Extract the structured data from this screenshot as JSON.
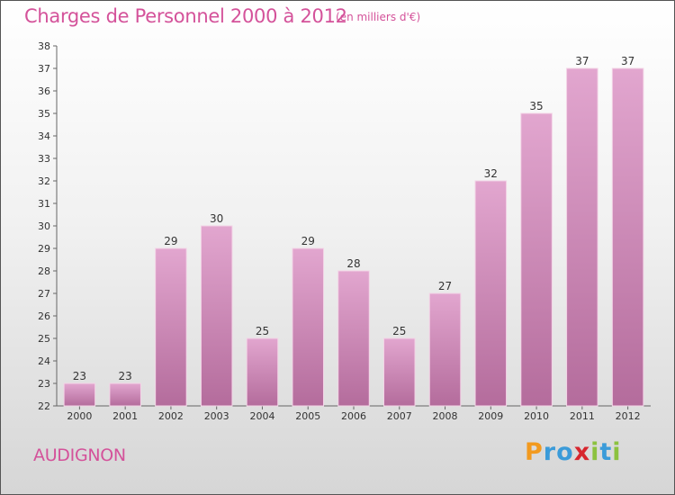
{
  "chart_data": {
    "type": "bar",
    "title": "Charges de Personnel 2000 à 2012",
    "subtitle": "(en milliers d'€)",
    "categories": [
      "2000",
      "2001",
      "2002",
      "2003",
      "2004",
      "2005",
      "2006",
      "2007",
      "2008",
      "2009",
      "2010",
      "2011",
      "2012"
    ],
    "values": [
      23,
      23,
      29,
      30,
      25,
      29,
      28,
      25,
      27,
      32,
      35,
      37,
      37
    ],
    "ylim": [
      22,
      38
    ],
    "yticks": [
      22,
      23,
      24,
      25,
      26,
      27,
      28,
      29,
      30,
      31,
      32,
      33,
      34,
      35,
      36,
      37,
      38
    ],
    "xlabel": "",
    "ylabel": "",
    "grid": false,
    "bar_color": "#d98bbd",
    "accent_color": "#d4529a"
  },
  "place": "AUDIGNON",
  "logo": {
    "text": "Proxiti",
    "letters": [
      "P",
      "r",
      "o",
      "x",
      "i",
      "t",
      "i"
    ],
    "colors": [
      "#f29a1f",
      "#3b9bd9",
      "#3b9bd9",
      "#d7262e",
      "#8cc23f",
      "#3b9bd9",
      "#8cc23f"
    ]
  }
}
